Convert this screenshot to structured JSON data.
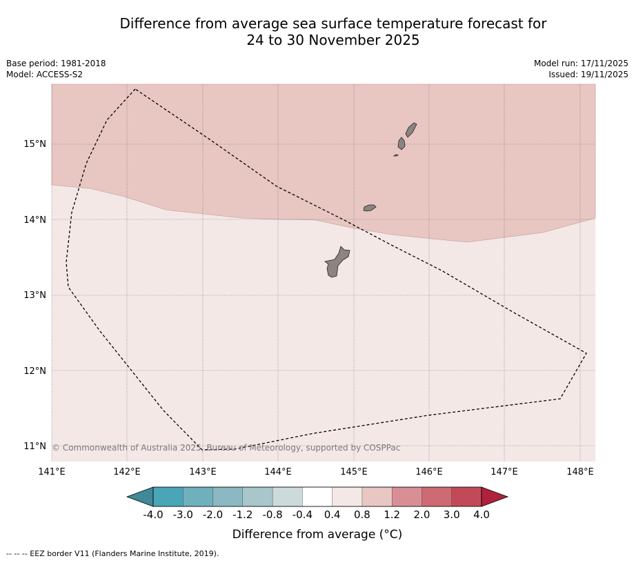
{
  "title": {
    "line1": "Difference from average sea surface temperature forecast for",
    "line2": "24 to 30 November 2025"
  },
  "meta": {
    "base_period": "Base period: 1981-2018",
    "model": "Model: ACCESS-S2",
    "model_run": "Model run: 17/11/2025",
    "issued": "Issued: 19/11/2025"
  },
  "map": {
    "lon_labels": [
      "141°E",
      "142°E",
      "143°E",
      "144°E",
      "145°E",
      "146°E",
      "147°E",
      "148°E"
    ],
    "lat_labels": [
      "15°N",
      "14°N",
      "13°N",
      "12°N",
      "11°N"
    ],
    "copyright": "© Commonwealth of Australia 2025, Bureau of Meteorology, supported by COSPPac",
    "colors": {
      "anomaly_0.4_0.8": "#f4e8e7",
      "anomaly_0.8_1.2": "#e8c6c2",
      "land": "#8c8480"
    }
  },
  "colorbar": {
    "labels": [
      "-4.0",
      "-3.0",
      "-2.0",
      "-1.2",
      "-0.8",
      "-0.4",
      "0.4",
      "0.8",
      "1.2",
      "2.0",
      "3.0",
      "4.0"
    ],
    "colors": [
      "#4aa5b6",
      "#6fb0bd",
      "#8bb8c2",
      "#a9c6cb",
      "#cddadb",
      "#ffffff",
      "#f4e8e7",
      "#e8c6c2",
      "#d78f95",
      "#ce6a73",
      "#c24a58"
    ],
    "under_color": "#3f8a96",
    "over_color": "#b0213d",
    "label": "Difference from average (°C)"
  },
  "legend": {
    "eez": "--  --  -- EEZ border V11 (Flanders Marine Institute, 2019)."
  }
}
